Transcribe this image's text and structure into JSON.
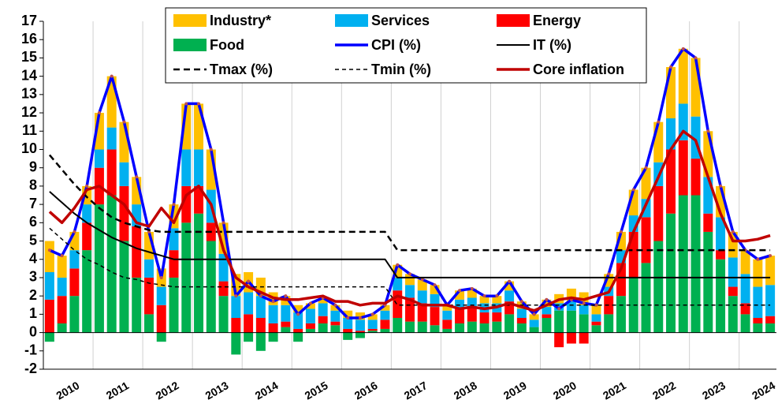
{
  "chart_data": {
    "type": "bar",
    "categories": [
      null,
      "2010",
      null,
      null,
      null,
      "2011",
      null,
      null,
      null,
      "2012",
      null,
      null,
      null,
      "2013",
      null,
      null,
      null,
      "2014",
      null,
      null,
      null,
      "2015",
      null,
      null,
      null,
      "2016",
      null,
      null,
      null,
      "2017",
      null,
      null,
      null,
      "2018",
      null,
      null,
      null,
      "2019",
      null,
      null,
      null,
      "2020",
      null,
      null,
      null,
      "2021",
      null,
      null,
      null,
      "2022",
      null,
      null,
      null,
      "2023",
      null,
      null,
      null,
      "2024",
      null
    ],
    "ylim": [
      -2,
      17
    ],
    "yticks": [
      -2,
      -1,
      0,
      1,
      2,
      3,
      4,
      5,
      6,
      7,
      8,
      9,
      10,
      11,
      12,
      13,
      14,
      15,
      16,
      17
    ],
    "series": [
      {
        "name": "Industry*",
        "kind": "bar",
        "color": "#ffc000",
        "values": [
          1.7,
          1.2,
          1.0,
          1.0,
          2.0,
          2.8,
          2.2,
          1.5,
          1.5,
          1.0,
          1.3,
          2.5,
          2.5,
          2.2,
          1.7,
          1.2,
          1.1,
          1.0,
          0.7,
          0.5,
          0.4,
          0.3,
          0.3,
          0.3,
          0.4,
          0.4,
          0.3,
          0.3,
          0.7,
          0.6,
          0.6,
          0.5,
          0.3,
          0.5,
          0.5,
          0.4,
          0.4,
          0.5,
          0.4,
          0.3,
          0.4,
          0.5,
          0.7,
          0.7,
          0.5,
          0.7,
          1.0,
          1.4,
          1.7,
          2.2,
          2.8,
          3.0,
          3.2,
          2.5,
          1.7,
          1.4,
          1.3,
          1.5,
          1.6
        ]
      },
      {
        "name": "Services",
        "kind": "bar",
        "color": "#00b0f0",
        "values": [
          1.5,
          1.0,
          1.0,
          1.0,
          1.0,
          1.2,
          1.3,
          1.2,
          1.0,
          1.0,
          1.2,
          2.0,
          2.0,
          1.8,
          1.5,
          1.2,
          1.2,
          1.2,
          1.0,
          0.9,
          0.9,
          0.8,
          0.7,
          0.6,
          0.6,
          0.6,
          0.5,
          0.5,
          0.7,
          0.7,
          0.7,
          0.7,
          0.5,
          0.5,
          0.5,
          0.5,
          0.5,
          0.6,
          0.5,
          0.4,
          0.4,
          0.4,
          0.5,
          0.5,
          0.4,
          0.5,
          0.7,
          0.9,
          1.0,
          1.3,
          1.7,
          2.0,
          2.3,
          2.0,
          1.8,
          1.6,
          1.6,
          1.7,
          1.7
        ]
      },
      {
        "name": "Energy",
        "kind": "bar",
        "color": "#ff0000",
        "values": [
          1.8,
          1.5,
          1.5,
          1.5,
          2.0,
          2.5,
          3.0,
          2.8,
          2.0,
          1.5,
          1.5,
          2.0,
          1.5,
          1.0,
          0.8,
          0.8,
          1.0,
          0.8,
          0.5,
          0.3,
          0.2,
          0.3,
          0.4,
          0.2,
          0.2,
          0.1,
          0.1,
          0.5,
          1.5,
          1.3,
          1.0,
          1.0,
          0.5,
          0.8,
          0.8,
          0.6,
          0.5,
          0.7,
          0.3,
          0.0,
          0.2,
          -0.8,
          -0.6,
          -0.6,
          0.2,
          1.0,
          1.8,
          2.5,
          2.5,
          3.0,
          3.5,
          3.0,
          2.0,
          1.0,
          0.5,
          0.5,
          0.6,
          0.3,
          0.4
        ]
      },
      {
        "name": "Food",
        "kind": "bar",
        "color": "#00b050",
        "values": [
          -0.5,
          0.5,
          2.0,
          4.5,
          7.0,
          7.5,
          5.0,
          3.0,
          1.0,
          -0.5,
          3.0,
          6.0,
          6.5,
          5.0,
          2.0,
          -1.2,
          -0.5,
          -1.0,
          -0.5,
          0.3,
          -0.5,
          0.2,
          0.5,
          0.4,
          -0.4,
          -0.3,
          0.1,
          0.2,
          0.8,
          0.6,
          0.6,
          0.4,
          0.2,
          0.5,
          0.6,
          0.5,
          0.6,
          1.0,
          0.5,
          0.3,
          0.8,
          1.2,
          1.2,
          1.0,
          0.4,
          1.0,
          2.0,
          3.0,
          3.8,
          5.0,
          6.5,
          7.5,
          7.5,
          5.5,
          4.0,
          2.0,
          1.0,
          0.5,
          0.5
        ]
      },
      {
        "name": "CPI (%)",
        "kind": "line",
        "color": "#0000ff",
        "marker": "#c0504d",
        "width": 3.5,
        "values": [
          4.5,
          4.2,
          5.5,
          8.0,
          12.0,
          14.0,
          11.5,
          8.5,
          5.5,
          3.0,
          7.0,
          12.5,
          12.5,
          10.0,
          6.0,
          2.0,
          2.8,
          2.0,
          1.7,
          2.0,
          1.0,
          1.6,
          1.9,
          1.5,
          0.8,
          0.8,
          1.0,
          1.5,
          3.7,
          3.2,
          2.9,
          2.6,
          1.5,
          2.3,
          2.4,
          2.0,
          2.0,
          2.8,
          1.7,
          1.0,
          1.8,
          1.3,
          1.8,
          1.6,
          1.5,
          3.2,
          5.5,
          7.8,
          9.0,
          11.5,
          14.5,
          15.5,
          15.0,
          11.0,
          8.0,
          5.5,
          4.5,
          4.0,
          4.2
        ]
      },
      {
        "name": "IT (%)",
        "kind": "line",
        "color": "#000000",
        "width": 2,
        "values": [
          7.7,
          7.1,
          6.5,
          6.0,
          5.6,
          5.2,
          4.9,
          4.6,
          4.4,
          4.2,
          4.0,
          4.0,
          4.0,
          4.0,
          4.0,
          4.0,
          4.0,
          4.0,
          4.0,
          4.0,
          4.0,
          4.0,
          4.0,
          4.0,
          4.0,
          4.0,
          4.0,
          4.0,
          3.0,
          3.0,
          3.0,
          3.0,
          3.0,
          3.0,
          3.0,
          3.0,
          3.0,
          3.0,
          3.0,
          3.0,
          3.0,
          3.0,
          3.0,
          3.0,
          3.0,
          3.0,
          3.0,
          3.0,
          3.0,
          3.0,
          3.0,
          3.0,
          3.0,
          3.0,
          3.0,
          3.0,
          3.0,
          3.0,
          3.0
        ]
      },
      {
        "name": "Tmax (%)",
        "kind": "line",
        "color": "#000000",
        "width": 2.5,
        "dash": "8 5",
        "values": [
          9.7,
          8.9,
          8.1,
          7.4,
          6.8,
          6.3,
          6.0,
          5.8,
          5.6,
          5.5,
          5.5,
          5.5,
          5.5,
          5.5,
          5.5,
          5.5,
          5.5,
          5.5,
          5.5,
          5.5,
          5.5,
          5.5,
          5.5,
          5.5,
          5.5,
          5.5,
          5.5,
          5.5,
          4.5,
          4.5,
          4.5,
          4.5,
          4.5,
          4.5,
          4.5,
          4.5,
          4.5,
          4.5,
          4.5,
          4.5,
          4.5,
          4.5,
          4.5,
          4.5,
          4.5,
          4.5,
          4.5,
          4.5,
          4.5,
          4.5,
          4.5,
          4.5,
          4.5,
          4.5,
          4.5,
          4.5,
          4.5,
          4.5,
          4.5
        ]
      },
      {
        "name": "Tmin (%)",
        "kind": "line",
        "color": "#000000",
        "width": 1.5,
        "dash": "5 4",
        "values": [
          5.7,
          5.1,
          4.5,
          4.0,
          3.7,
          3.3,
          3.0,
          2.9,
          2.7,
          2.6,
          2.5,
          2.5,
          2.5,
          2.5,
          2.5,
          2.5,
          2.5,
          2.5,
          2.5,
          2.5,
          2.5,
          2.5,
          2.5,
          2.5,
          2.5,
          2.5,
          2.5,
          2.5,
          1.5,
          1.5,
          1.5,
          1.5,
          1.5,
          1.5,
          1.5,
          1.5,
          1.5,
          1.5,
          1.5,
          1.5,
          1.5,
          1.5,
          1.5,
          1.5,
          1.5,
          1.5,
          1.5,
          1.5,
          1.5,
          1.5,
          1.5,
          1.5,
          1.5,
          1.5,
          1.5,
          1.5,
          1.5,
          1.5,
          1.5
        ]
      },
      {
        "name": "Core inflation",
        "kind": "line",
        "color": "#c00000",
        "width": 3.5,
        "values": [
          6.6,
          6.0,
          6.8,
          7.8,
          8.0,
          7.5,
          7.0,
          6.0,
          5.8,
          6.8,
          6.0,
          7.5,
          8.0,
          7.0,
          4.5,
          3.0,
          2.5,
          2.2,
          1.9,
          1.8,
          1.8,
          1.9,
          2.0,
          1.7,
          1.7,
          1.5,
          1.6,
          1.6,
          2.0,
          1.8,
          1.5,
          1.5,
          1.5,
          1.3,
          1.4,
          1.3,
          1.4,
          1.6,
          1.4,
          1.2,
          1.5,
          1.8,
          1.9,
          1.8,
          2.0,
          2.2,
          3.5,
          5.5,
          7.0,
          8.5,
          10.0,
          11.0,
          10.5,
          8.5,
          6.5,
          5.0,
          5.0,
          5.1,
          5.3
        ]
      }
    ]
  }
}
